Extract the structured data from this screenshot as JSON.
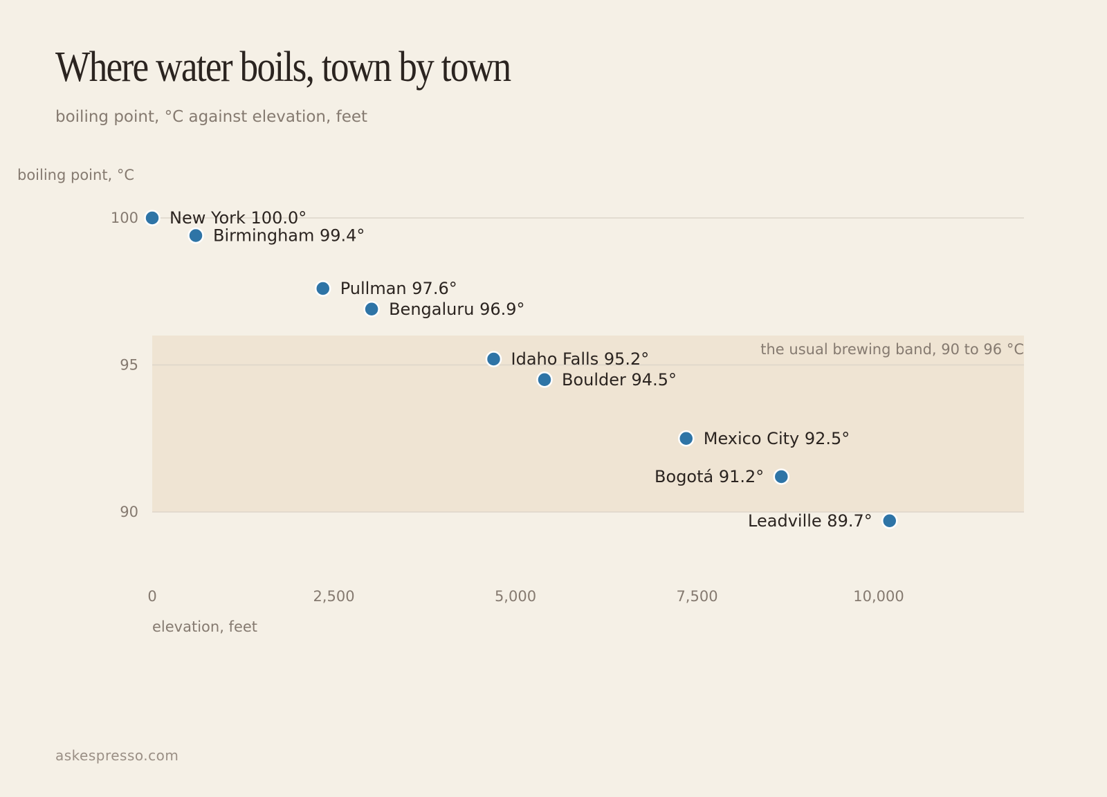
{
  "header": {
    "title": "Where water boils, town by town",
    "subtitle": "boiling point, °C against elevation, feet"
  },
  "footer": {
    "source": "askespresso.com"
  },
  "chart_data": {
    "type": "scatter",
    "title": "Where water boils, town by town",
    "subtitle": "boiling point, °C against elevation, feet",
    "xlabel": "elevation, feet",
    "ylabel": "boiling point, °C",
    "xlim": [
      0,
      12000
    ],
    "ylim": [
      87,
      100
    ],
    "x_ticks": [
      0,
      2500,
      5000,
      7500,
      10000
    ],
    "x_tick_labels": [
      "0",
      "2,500",
      "5,000",
      "7,500",
      "10,000"
    ],
    "y_ticks": [
      90,
      95,
      100
    ],
    "y_tick_labels": [
      "90",
      "95",
      "100"
    ],
    "grid": "horizontal",
    "band": {
      "y_from": 90,
      "y_to": 96,
      "label": "the usual brewing band, 90 to 96 °C"
    },
    "point_color": "#2e74a6",
    "band_color": "#efe4d3",
    "points": [
      {
        "name": "New York",
        "x": 0,
        "y": 100.0,
        "label": "New York 100.0°",
        "label_side": "right"
      },
      {
        "name": "Birmingham",
        "x": 600,
        "y": 99.4,
        "label": "Birmingham 99.4°",
        "label_side": "right"
      },
      {
        "name": "Pullman",
        "x": 2350,
        "y": 97.6,
        "label": "Pullman 97.6°",
        "label_side": "right"
      },
      {
        "name": "Bengaluru",
        "x": 3020,
        "y": 96.9,
        "label": "Bengaluru 96.9°",
        "label_side": "right"
      },
      {
        "name": "Idaho Falls",
        "x": 4700,
        "y": 95.2,
        "label": "Idaho Falls 95.2°",
        "label_side": "right"
      },
      {
        "name": "Boulder",
        "x": 5400,
        "y": 94.5,
        "label": "Boulder 94.5°",
        "label_side": "right"
      },
      {
        "name": "Mexico City",
        "x": 7350,
        "y": 92.5,
        "label": "Mexico City 92.5°",
        "label_side": "right"
      },
      {
        "name": "Bogotá",
        "x": 8660,
        "y": 91.2,
        "label": "Bogotá 91.2°",
        "label_side": "left"
      },
      {
        "name": "Leadville",
        "x": 10150,
        "y": 89.7,
        "label": "Leadville 89.7°",
        "label_side": "left"
      }
    ]
  }
}
